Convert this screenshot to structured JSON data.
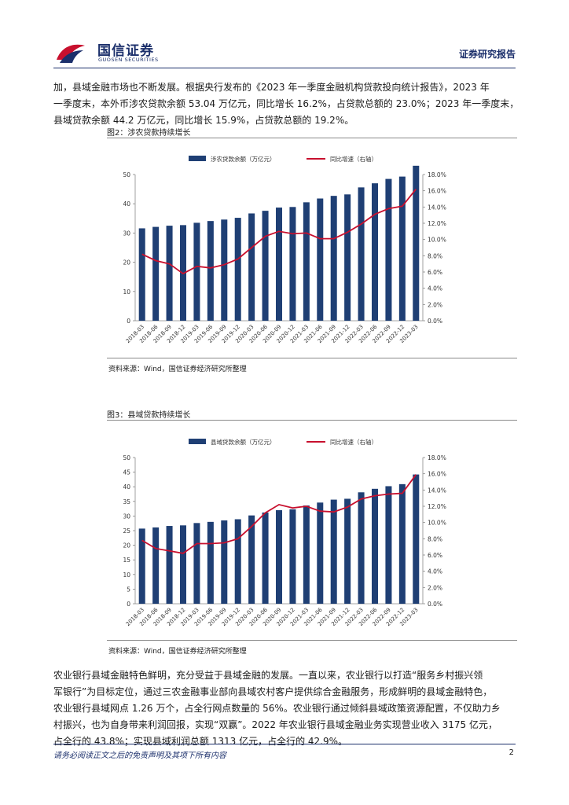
{
  "header": {
    "logo_cn": "国信证券",
    "logo_en": "GUOSEN SECURITIES",
    "report_type": "证券研究报告"
  },
  "body": {
    "para1_lines": [
      "加，县域金融市场也不断发展。根据央行发布的《2023 年一季度金融机构贷款投向统计报告》，2023 年",
      "一季度末，本外币涉农贷款余额 53.04 万亿元，同比增长 16.2%，占贷款总额的 23.0%；2023 年一季度末，",
      "县域贷款余额 44.2 万亿元，同比增长 15.9%，占贷款总额的 19.2%。"
    ],
    "para2_lines": [
      "农业银行县域金融特色鲜明，充分受益于县域金融的发展。一直以来，农业银行以打造“服务乡村振兴领",
      "军银行”为目标定位，通过三农金融事业部向县域农村客户提供综合金融服务，形成鲜明的县域金融特色，",
      "农业银行县域网点 1.26 万个，占全行网点数量的 56%。农业银行通过倾斜县域政策资源配置，不仅助力乡",
      "村振兴，也为自身带来利润回报，实现“双赢”。2022 年农业银行县域金融业务实现营业收入 3175 亿元，",
      "占全行的 43.8%；实现县域利润总额 1313 亿元，占全行的 42.9%。"
    ]
  },
  "figures": [
    {
      "title": "图2：涉农贷款持续增长",
      "source": "资料来源：Wind，国信证券经济研究所整理"
    },
    {
      "title": "图3：县域贷款持续增长",
      "source": "资料来源：Wind，国信证券经济研究所整理"
    }
  ],
  "chart_data": [
    {
      "type": "bar",
      "title": "图2：涉农贷款持续增长",
      "categories": [
        "2018-03",
        "2018-06",
        "2018-09",
        "2018-12",
        "2019-03",
        "2019-06",
        "2019-09",
        "2019-12",
        "2020-03",
        "2020-06",
        "2020-09",
        "2020-12",
        "2021-03",
        "2021-06",
        "2021-09",
        "2021-12",
        "2022-03",
        "2022-06",
        "2022-09",
        "2022-12",
        "2023-03"
      ],
      "series": [
        {
          "name": "涉农贷款余额（万亿元）",
          "kind": "bar",
          "axis": "left",
          "color": "#1f3f74",
          "values": [
            31.6,
            32.1,
            32.5,
            32.7,
            33.5,
            34.1,
            34.6,
            35.2,
            36.7,
            37.6,
            38.7,
            38.9,
            40.5,
            41.8,
            42.7,
            43.2,
            45.6,
            47.0,
            48.5,
            49.3,
            53.0
          ]
        },
        {
          "name": "同比增速（右轴）",
          "kind": "line",
          "axis": "right",
          "color": "#c8102e",
          "values": [
            8.2,
            7.4,
            7.0,
            5.8,
            6.7,
            6.5,
            6.9,
            7.6,
            9.0,
            10.4,
            11.0,
            10.7,
            10.8,
            10.1,
            10.1,
            10.9,
            11.9,
            13.1,
            13.8,
            14.1,
            16.2
          ]
        }
      ],
      "y_ticks": [
        "0",
        "10",
        "20",
        "30",
        "40",
        "50"
      ],
      "y2_ticks": [
        "0.0%",
        "2.0%",
        "4.0%",
        "6.0%",
        "8.0%",
        "10.0%",
        "12.0%",
        "14.0%",
        "16.0%",
        "18.0%"
      ],
      "ylim": [
        0,
        50
      ],
      "y2lim": [
        0,
        18
      ],
      "legend": "top-center"
    },
    {
      "type": "bar",
      "title": "图3：县域贷款持续增长",
      "categories": [
        "2018-03",
        "2018-06",
        "2018-09",
        "2018-12",
        "2019-03",
        "2019-06",
        "2019-09",
        "2019-12",
        "2020-03",
        "2020-06",
        "2020-09",
        "2020-12",
        "2021-03",
        "2021-06",
        "2021-09",
        "2021-12",
        "2022-03",
        "2022-06",
        "2022-09",
        "2022-12",
        "2023-03"
      ],
      "series": [
        {
          "name": "县域贷款余额（万亿元）",
          "kind": "bar",
          "axis": "left",
          "color": "#1f3f74",
          "values": [
            25.7,
            26.1,
            26.6,
            26.8,
            27.6,
            28.0,
            28.5,
            28.9,
            30.2,
            31.2,
            32.0,
            32.3,
            33.6,
            34.6,
            35.6,
            35.9,
            38.1,
            39.3,
            40.2,
            40.9,
            44.2
          ]
        },
        {
          "name": "同比增速（右轴）",
          "kind": "line",
          "axis": "right",
          "color": "#c8102e",
          "values": [
            7.8,
            6.8,
            6.5,
            6.2,
            7.4,
            7.4,
            7.5,
            8.0,
            9.5,
            11.2,
            12.2,
            11.8,
            12.0,
            11.4,
            11.3,
            11.9,
            12.9,
            13.3,
            13.5,
            13.6,
            15.9
          ]
        }
      ],
      "y_ticks": [
        "0",
        "5",
        "10",
        "15",
        "20",
        "25",
        "30",
        "35",
        "40",
        "45",
        "50"
      ],
      "y2_ticks": [
        "0.0%",
        "2.0%",
        "4.0%",
        "6.0%",
        "8.0%",
        "10.0%",
        "12.0%",
        "14.0%",
        "16.0%",
        "18.0%"
      ],
      "ylim": [
        0,
        50
      ],
      "y2lim": [
        0,
        18
      ],
      "legend": "top-center"
    }
  ],
  "footer": {
    "disclaimer": "请务必阅读正文之后的免责声明及其项下所有内容",
    "page_number": "2"
  }
}
